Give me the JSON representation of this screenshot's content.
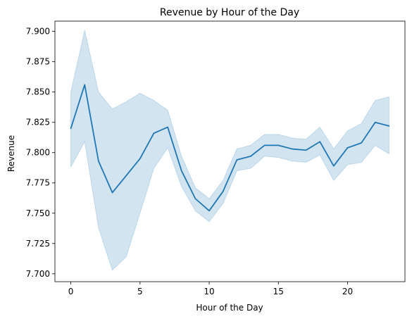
{
  "chart_data": {
    "type": "line",
    "title": "Revenue by Hour of the Day",
    "xlabel": "Hour of the Day",
    "ylabel": "Revenue",
    "xlim": [
      -1.15,
      24.15
    ],
    "ylim": [
      7.6935,
      7.9085
    ],
    "xticks": [
      0,
      5,
      10,
      15,
      20
    ],
    "xtick_labels": [
      "0",
      "5",
      "10",
      "15",
      "20"
    ],
    "yticks": [
      7.7,
      7.725,
      7.75,
      7.775,
      7.8,
      7.825,
      7.85,
      7.875,
      7.9
    ],
    "ytick_labels": [
      "7.700",
      "7.725",
      "7.750",
      "7.775",
      "7.800",
      "7.825",
      "7.850",
      "7.875",
      "7.900"
    ],
    "grid": false,
    "x": [
      0,
      1,
      2,
      3,
      4,
      5,
      6,
      7,
      8,
      9,
      10,
      11,
      12,
      13,
      14,
      15,
      16,
      17,
      18,
      19,
      20,
      21,
      22,
      23
    ],
    "series": [
      {
        "values": [
          7.82,
          7.856,
          7.793,
          7.767,
          7.781,
          7.795,
          7.816,
          7.821,
          7.785,
          7.762,
          7.752,
          7.768,
          7.794,
          7.797,
          7.806,
          7.806,
          7.803,
          7.802,
          7.809,
          7.789,
          7.804,
          7.808,
          7.825,
          7.822
        ],
        "ci_lower": [
          7.788,
          7.809,
          7.738,
          7.703,
          7.714,
          7.75,
          7.787,
          7.804,
          7.772,
          7.752,
          7.743,
          7.758,
          7.785,
          7.787,
          7.797,
          7.796,
          7.793,
          7.792,
          7.798,
          7.777,
          7.79,
          7.792,
          7.806,
          7.799
        ],
        "ci_upper": [
          7.85,
          7.901,
          7.85,
          7.836,
          7.842,
          7.849,
          7.843,
          7.835,
          7.797,
          7.771,
          7.762,
          7.777,
          7.803,
          7.806,
          7.815,
          7.815,
          7.812,
          7.811,
          7.821,
          7.803,
          7.818,
          7.824,
          7.843,
          7.846
        ],
        "color": "#1f77b4",
        "band_color": "#1f77b4"
      }
    ]
  }
}
